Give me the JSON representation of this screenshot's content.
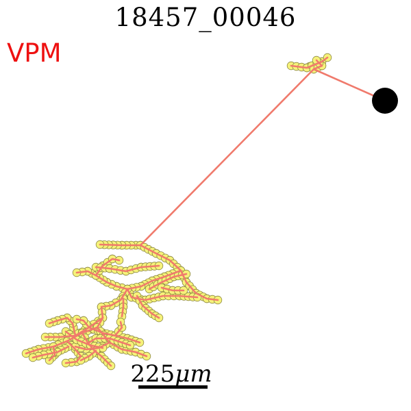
{
  "figure": {
    "title": "18457_00046",
    "region_label": "VPM",
    "scale_bar": {
      "value": "225",
      "unit": "μm"
    },
    "colors": {
      "region": "#ee1111",
      "skeleton": "#f07a6c",
      "node_fill": "#f6f27a",
      "node_stroke": "#8a8640",
      "soma": "#000000",
      "text": "#000000"
    }
  }
}
